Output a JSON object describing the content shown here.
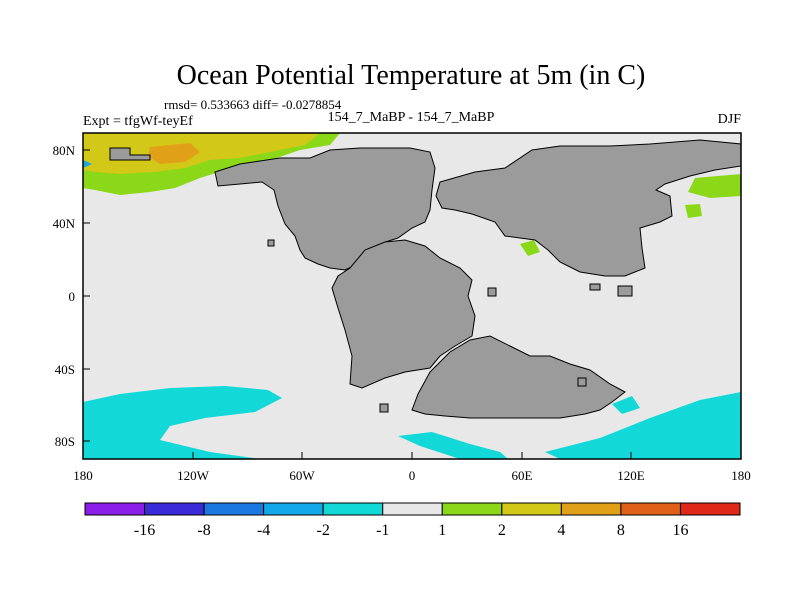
{
  "chart_data": {
    "type": "heatmap",
    "title": "Ocean Potential Temperature at 5m (in C)",
    "stats": "rmsd= 0.533663  diff= -0.0278854",
    "left_label": "Expt = tfgWf-teyEf",
    "center_label": "154_7_MaBP - 154_7_MaBP",
    "right_label": "DJF",
    "x_ticks": [
      "180",
      "120W",
      "60W",
      "0",
      "60E",
      "120E",
      "180"
    ],
    "y_ticks": [
      "80N",
      "40N",
      "0",
      "40S",
      "80S"
    ],
    "xlim": [
      -180,
      180
    ],
    "ylim": [
      -90,
      90
    ],
    "colorbar_labels": [
      "-16",
      "-8",
      "-4",
      "-2",
      "-1",
      "1",
      "2",
      "4",
      "8",
      "16"
    ],
    "colors": {
      "levels": [
        "#8a1ee8",
        "#3a2ad8",
        "#1a78e0",
        "#12a8e8",
        "#12d8d8",
        "#e8e8e8",
        "#8ad818",
        "#d2c818",
        "#e0a018",
        "#e06018",
        "#e02818"
      ],
      "land": "#9b9b9b",
      "background": "#e8e8e8"
    }
  }
}
